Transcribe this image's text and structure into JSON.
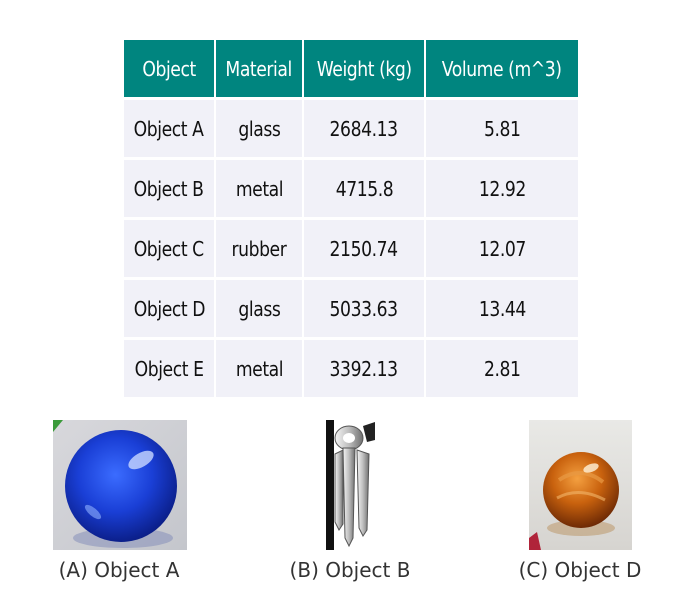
{
  "table": {
    "headers": [
      "Object",
      "Material",
      "Weight (kg)",
      "Volume (m^3)"
    ],
    "rows": [
      [
        "Object A",
        "glass",
        "2684.13",
        "5.81"
      ],
      [
        "Object B",
        "metal",
        "4715.8",
        "12.92"
      ],
      [
        "Object C",
        "rubber",
        "2150.74",
        "12.07"
      ],
      [
        "Object D",
        "glass",
        "5033.63",
        "13.44"
      ],
      [
        "Object E",
        "metal",
        "3392.13",
        "2.81"
      ]
    ],
    "colors": {
      "header_bg": "#00857f",
      "header_text": "#ffffff",
      "cell_bg": "#f1f1f8"
    }
  },
  "images": [
    {
      "caption": "(A) Object A",
      "icon": "blue-glass-marble-image"
    },
    {
      "caption": "(B) Object B",
      "icon": "metal-keys-image"
    },
    {
      "caption": "(C) Object D",
      "icon": "orange-glass-marble-image"
    }
  ]
}
